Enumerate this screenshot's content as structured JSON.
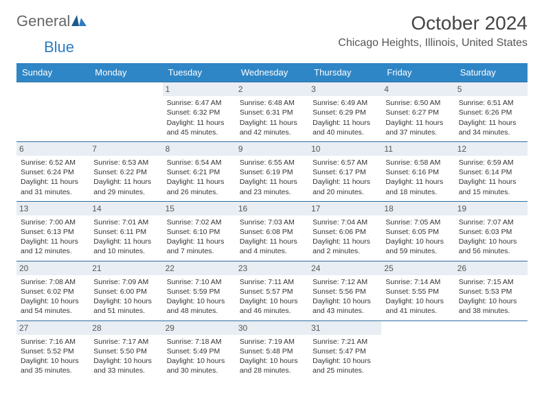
{
  "logo": {
    "text_general": "General",
    "text_blue": "Blue"
  },
  "title": "October 2024",
  "location": "Chicago Heights, Illinois, United States",
  "colors": {
    "header_bg": "#2f86c6",
    "header_text": "#ffffff",
    "daynum_bg": "#e8eef3",
    "row_border": "#2f6da3",
    "logo_blue": "#2b7cc1"
  },
  "day_headers": [
    "Sunday",
    "Monday",
    "Tuesday",
    "Wednesday",
    "Thursday",
    "Friday",
    "Saturday"
  ],
  "weeks": [
    [
      {
        "n": "",
        "empty": true
      },
      {
        "n": "",
        "empty": true
      },
      {
        "n": "1",
        "sunrise": "6:47 AM",
        "sunset": "6:32 PM",
        "day_h": 11,
        "day_m": 45
      },
      {
        "n": "2",
        "sunrise": "6:48 AM",
        "sunset": "6:31 PM",
        "day_h": 11,
        "day_m": 42
      },
      {
        "n": "3",
        "sunrise": "6:49 AM",
        "sunset": "6:29 PM",
        "day_h": 11,
        "day_m": 40
      },
      {
        "n": "4",
        "sunrise": "6:50 AM",
        "sunset": "6:27 PM",
        "day_h": 11,
        "day_m": 37
      },
      {
        "n": "5",
        "sunrise": "6:51 AM",
        "sunset": "6:26 PM",
        "day_h": 11,
        "day_m": 34
      }
    ],
    [
      {
        "n": "6",
        "sunrise": "6:52 AM",
        "sunset": "6:24 PM",
        "day_h": 11,
        "day_m": 31
      },
      {
        "n": "7",
        "sunrise": "6:53 AM",
        "sunset": "6:22 PM",
        "day_h": 11,
        "day_m": 29
      },
      {
        "n": "8",
        "sunrise": "6:54 AM",
        "sunset": "6:21 PM",
        "day_h": 11,
        "day_m": 26
      },
      {
        "n": "9",
        "sunrise": "6:55 AM",
        "sunset": "6:19 PM",
        "day_h": 11,
        "day_m": 23
      },
      {
        "n": "10",
        "sunrise": "6:57 AM",
        "sunset": "6:17 PM",
        "day_h": 11,
        "day_m": 20
      },
      {
        "n": "11",
        "sunrise": "6:58 AM",
        "sunset": "6:16 PM",
        "day_h": 11,
        "day_m": 18
      },
      {
        "n": "12",
        "sunrise": "6:59 AM",
        "sunset": "6:14 PM",
        "day_h": 11,
        "day_m": 15
      }
    ],
    [
      {
        "n": "13",
        "sunrise": "7:00 AM",
        "sunset": "6:13 PM",
        "day_h": 11,
        "day_m": 12
      },
      {
        "n": "14",
        "sunrise": "7:01 AM",
        "sunset": "6:11 PM",
        "day_h": 11,
        "day_m": 10
      },
      {
        "n": "15",
        "sunrise": "7:02 AM",
        "sunset": "6:10 PM",
        "day_h": 11,
        "day_m": 7
      },
      {
        "n": "16",
        "sunrise": "7:03 AM",
        "sunset": "6:08 PM",
        "day_h": 11,
        "day_m": 4
      },
      {
        "n": "17",
        "sunrise": "7:04 AM",
        "sunset": "6:06 PM",
        "day_h": 11,
        "day_m": 2
      },
      {
        "n": "18",
        "sunrise": "7:05 AM",
        "sunset": "6:05 PM",
        "day_h": 10,
        "day_m": 59
      },
      {
        "n": "19",
        "sunrise": "7:07 AM",
        "sunset": "6:03 PM",
        "day_h": 10,
        "day_m": 56
      }
    ],
    [
      {
        "n": "20",
        "sunrise": "7:08 AM",
        "sunset": "6:02 PM",
        "day_h": 10,
        "day_m": 54
      },
      {
        "n": "21",
        "sunrise": "7:09 AM",
        "sunset": "6:00 PM",
        "day_h": 10,
        "day_m": 51
      },
      {
        "n": "22",
        "sunrise": "7:10 AM",
        "sunset": "5:59 PM",
        "day_h": 10,
        "day_m": 48
      },
      {
        "n": "23",
        "sunrise": "7:11 AM",
        "sunset": "5:57 PM",
        "day_h": 10,
        "day_m": 46
      },
      {
        "n": "24",
        "sunrise": "7:12 AM",
        "sunset": "5:56 PM",
        "day_h": 10,
        "day_m": 43
      },
      {
        "n": "25",
        "sunrise": "7:14 AM",
        "sunset": "5:55 PM",
        "day_h": 10,
        "day_m": 41
      },
      {
        "n": "26",
        "sunrise": "7:15 AM",
        "sunset": "5:53 PM",
        "day_h": 10,
        "day_m": 38
      }
    ],
    [
      {
        "n": "27",
        "sunrise": "7:16 AM",
        "sunset": "5:52 PM",
        "day_h": 10,
        "day_m": 35
      },
      {
        "n": "28",
        "sunrise": "7:17 AM",
        "sunset": "5:50 PM",
        "day_h": 10,
        "day_m": 33
      },
      {
        "n": "29",
        "sunrise": "7:18 AM",
        "sunset": "5:49 PM",
        "day_h": 10,
        "day_m": 30
      },
      {
        "n": "30",
        "sunrise": "7:19 AM",
        "sunset": "5:48 PM",
        "day_h": 10,
        "day_m": 28
      },
      {
        "n": "31",
        "sunrise": "7:21 AM",
        "sunset": "5:47 PM",
        "day_h": 10,
        "day_m": 25
      },
      {
        "n": "",
        "empty": true
      },
      {
        "n": "",
        "empty": true
      }
    ]
  ],
  "labels": {
    "sunrise_prefix": "Sunrise: ",
    "sunset_prefix": "Sunset: ",
    "daylight_prefix": "Daylight: ",
    "hours_word": " hours",
    "and_word": "and ",
    "minutes_word": " minutes."
  }
}
